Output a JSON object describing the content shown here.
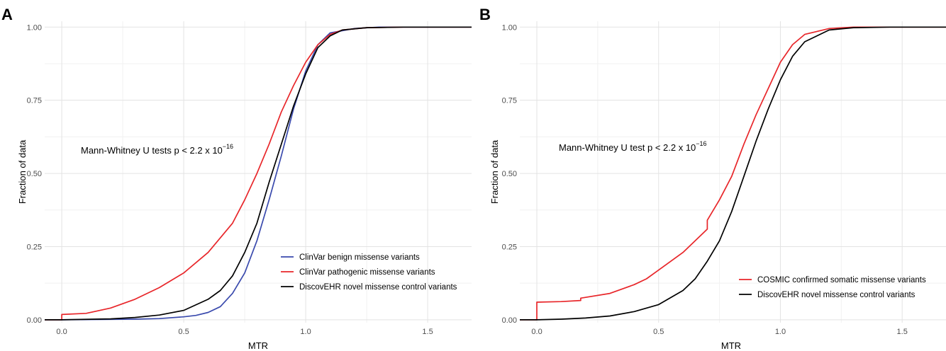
{
  "colors": {
    "clinvar_benign": "#3a4aad",
    "red": "#e8262a",
    "black": "#000000",
    "grid_major": "#e3e3e3",
    "grid_minor": "#f1f1f1"
  },
  "chart_data": [
    {
      "panel_label": "A",
      "type": "line",
      "xlabel": "MTR",
      "ylabel": "Fraction of data",
      "xlim": [
        -0.07,
        1.68
      ],
      "ylim": [
        -0.01,
        1.02
      ],
      "x_ticks": [
        "0.0",
        "0.5",
        "1.0",
        "1.5"
      ],
      "y_ticks": [
        "0.00",
        "0.25",
        "0.50",
        "0.75",
        "1.00"
      ],
      "grid": true,
      "legend_position": "bottom-right",
      "annotation": {
        "main": "Mann-Whitney U tests p < 2.2 x 10",
        "sup": "−16"
      },
      "series": [
        {
          "name": "ClinVar benign missense variants",
          "color": "#3a4aad",
          "points": [
            [
              -0.07,
              0
            ],
            [
              0,
              0
            ],
            [
              0.3,
              0.002
            ],
            [
              0.4,
              0.004
            ],
            [
              0.5,
              0.01
            ],
            [
              0.55,
              0.015
            ],
            [
              0.6,
              0.025
            ],
            [
              0.65,
              0.045
            ],
            [
              0.7,
              0.09
            ],
            [
              0.75,
              0.16
            ],
            [
              0.8,
              0.27
            ],
            [
              0.85,
              0.41
            ],
            [
              0.9,
              0.56
            ],
            [
              0.95,
              0.72
            ],
            [
              1.0,
              0.85
            ],
            [
              1.05,
              0.94
            ],
            [
              1.1,
              0.98
            ],
            [
              1.2,
              0.995
            ],
            [
              1.3,
              1
            ],
            [
              1.68,
              1
            ]
          ]
        },
        {
          "name": "ClinVar pathogenic missense variants",
          "color": "#e8262a",
          "points": [
            [
              -0.07,
              0
            ],
            [
              0,
              0
            ],
            [
              0,
              0.018
            ],
            [
              0.1,
              0.022
            ],
            [
              0.2,
              0.04
            ],
            [
              0.3,
              0.07
            ],
            [
              0.4,
              0.11
            ],
            [
              0.5,
              0.16
            ],
            [
              0.6,
              0.23
            ],
            [
              0.7,
              0.33
            ],
            [
              0.75,
              0.41
            ],
            [
              0.8,
              0.5
            ],
            [
              0.85,
              0.6
            ],
            [
              0.9,
              0.71
            ],
            [
              0.95,
              0.8
            ],
            [
              1.0,
              0.88
            ],
            [
              1.05,
              0.94
            ],
            [
              1.1,
              0.975
            ],
            [
              1.15,
              0.99
            ],
            [
              1.25,
              0.998
            ],
            [
              1.4,
              1
            ],
            [
              1.68,
              1
            ]
          ]
        },
        {
          "name": "DiscovEHR novel missense control variants",
          "color": "#000000",
          "points": [
            [
              -0.07,
              0
            ],
            [
              0,
              0
            ],
            [
              0.2,
              0.003
            ],
            [
              0.3,
              0.008
            ],
            [
              0.4,
              0.016
            ],
            [
              0.5,
              0.032
            ],
            [
              0.6,
              0.07
            ],
            [
              0.65,
              0.1
            ],
            [
              0.7,
              0.15
            ],
            [
              0.75,
              0.23
            ],
            [
              0.8,
              0.33
            ],
            [
              0.85,
              0.47
            ],
            [
              0.9,
              0.6
            ],
            [
              0.95,
              0.73
            ],
            [
              1.0,
              0.84
            ],
            [
              1.05,
              0.93
            ],
            [
              1.1,
              0.97
            ],
            [
              1.15,
              0.99
            ],
            [
              1.25,
              0.998
            ],
            [
              1.4,
              1
            ],
            [
              1.68,
              1
            ]
          ]
        }
      ]
    },
    {
      "panel_label": "B",
      "type": "line",
      "xlabel": "MTR",
      "ylabel": "Fraction of data",
      "xlim": [
        -0.07,
        1.68
      ],
      "ylim": [
        -0.01,
        1.02
      ],
      "x_ticks": [
        "0.0",
        "0.5",
        "1.0",
        "1.5"
      ],
      "y_ticks": [
        "0.00",
        "0.25",
        "0.50",
        "0.75",
        "1.00"
      ],
      "grid": true,
      "legend_position": "bottom-right",
      "annotation": {
        "main": "Mann-Whitney U test p < 2.2 x 10",
        "sup": "−16"
      },
      "series": [
        {
          "name": "COSMIC confirmed somatic missense variants",
          "color": "#e8262a",
          "points": [
            [
              -0.07,
              0
            ],
            [
              0,
              0
            ],
            [
              0,
              0.06
            ],
            [
              0.1,
              0.062
            ],
            [
              0.18,
              0.066
            ],
            [
              0.18,
              0.074
            ],
            [
              0.3,
              0.09
            ],
            [
              0.4,
              0.12
            ],
            [
              0.45,
              0.14
            ],
            [
              0.5,
              0.17
            ],
            [
              0.6,
              0.23
            ],
            [
              0.7,
              0.31
            ],
            [
              0.7,
              0.34
            ],
            [
              0.75,
              0.41
            ],
            [
              0.8,
              0.49
            ],
            [
              0.85,
              0.6
            ],
            [
              0.9,
              0.7
            ],
            [
              0.95,
              0.79
            ],
            [
              1.0,
              0.88
            ],
            [
              1.05,
              0.94
            ],
            [
              1.1,
              0.975
            ],
            [
              1.2,
              0.995
            ],
            [
              1.3,
              1
            ],
            [
              1.68,
              1
            ]
          ]
        },
        {
          "name": "DiscovEHR novel missense control variants",
          "color": "#000000",
          "points": [
            [
              -0.07,
              0
            ],
            [
              0,
              0
            ],
            [
              0.1,
              0.002
            ],
            [
              0.2,
              0.006
            ],
            [
              0.3,
              0.013
            ],
            [
              0.4,
              0.028
            ],
            [
              0.5,
              0.052
            ],
            [
              0.6,
              0.1
            ],
            [
              0.65,
              0.14
            ],
            [
              0.7,
              0.2
            ],
            [
              0.75,
              0.27
            ],
            [
              0.8,
              0.37
            ],
            [
              0.85,
              0.49
            ],
            [
              0.9,
              0.61
            ],
            [
              0.95,
              0.72
            ],
            [
              1.0,
              0.82
            ],
            [
              1.05,
              0.9
            ],
            [
              1.1,
              0.95
            ],
            [
              1.2,
              0.99
            ],
            [
              1.3,
              0.998
            ],
            [
              1.45,
              1
            ],
            [
              1.68,
              1
            ]
          ]
        }
      ]
    }
  ]
}
